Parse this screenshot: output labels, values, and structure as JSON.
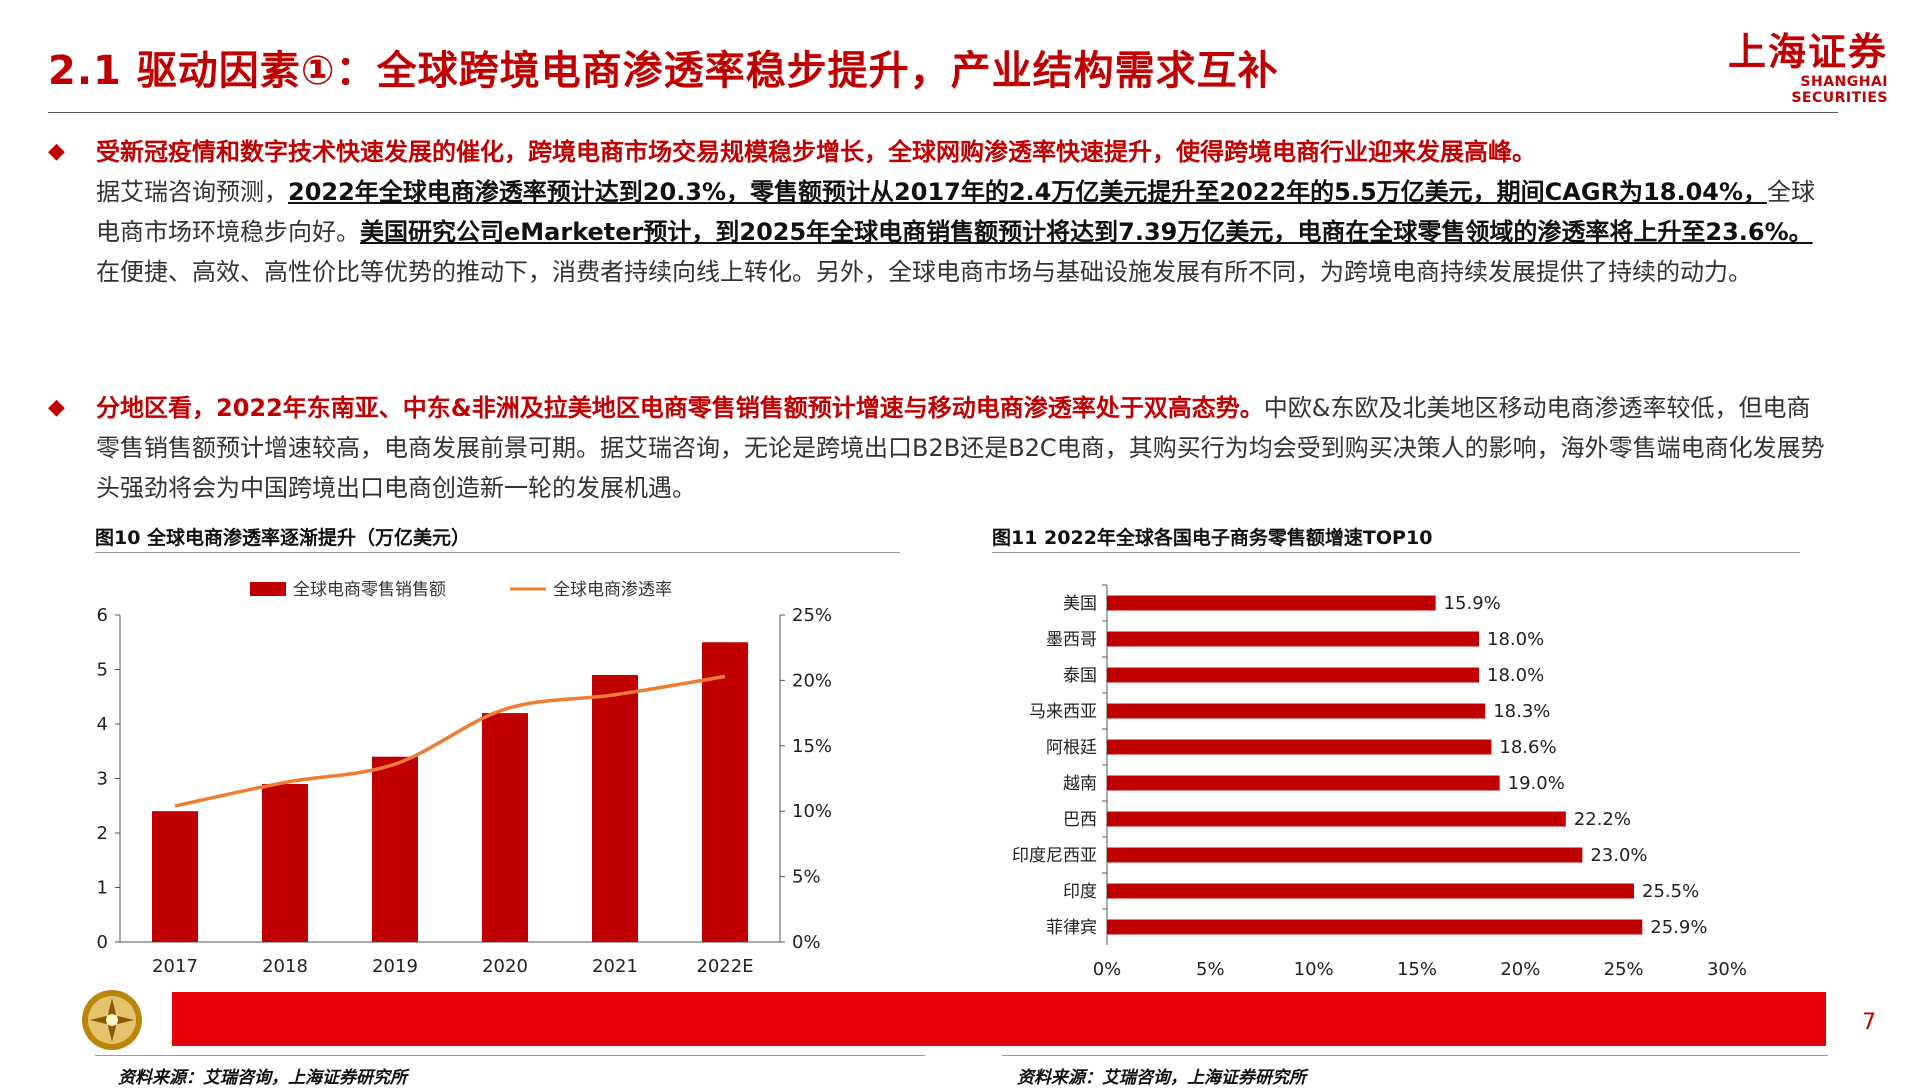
{
  "header": {
    "title": "2.1 驱动因素①：全球跨境电商渗透率稳步提升，产业结构需求互补",
    "logo_cn": "上海证券",
    "logo_en": "SHANGHAI SECURITIES"
  },
  "paragraph1": {
    "headline": "受新冠疫情和数字技术快速发展的催化，跨境电商市场交易规模稳步增长，全球网购渗透率快速提升，使得跨境电商行业迎来发展高峰。",
    "t1": "据艾瑞咨询预测，",
    "u1": "2022年全球电商渗透率预计达到20.3%，零售额预计从2017年的2.4万亿美元提升至2022年的5.5万亿美元，期间CAGR为18.04%，",
    "t2": "全球电商市场环境稳步向好。",
    "u2": "美国研究公司eMarketer预计，到2025年全球电商销售额预计将达到7.39万亿美元，电商在全球零售领域的渗透率将上升至23.6%。",
    "t3": "在便捷、高效、高性价比等优势的推动下，消费者持续向线上转化。另外，全球电商市场与基础设施发展有所不同，为跨境电商持续发展提供了持续的动力。"
  },
  "paragraph2": {
    "headline": "分地区看，2022年东南亚、中东&非洲及拉美地区电商零售销售额预计增速与移动电商渗透率处于双高态势。",
    "body": "中欧&东欧及北美地区移动电商渗透率较低，但电商零售销售额预计增速较高，电商发展前景可期。据艾瑞咨询，无论是跨境出口B2B还是B2C电商，其购买行为均会受到购买决策人的影响，海外零售端电商化发展势头强劲将会为中国跨境出口电商创造新一轮的发展机遇。"
  },
  "figure10": {
    "title": "图10 全球电商渗透率逐渐提升（万亿美元）",
    "source": "资料来源：艾瑞咨询，上海证券研究所"
  },
  "figure11": {
    "title": "图11 2022年全球各国电子商务零售额增速TOP10",
    "source": "资料来源：艾瑞咨询，上海证券研究所"
  },
  "page_number": "7",
  "colors": {
    "accent": "#c00000",
    "bar": "#c00000",
    "line": "#ed7d31",
    "footer": "#e8000b"
  },
  "chart_data": [
    {
      "type": "bar+line",
      "categories": [
        "2017",
        "2018",
        "2019",
        "2020",
        "2021",
        "2022E"
      ],
      "series": [
        {
          "name": "全球电商零售销售额",
          "type": "bar",
          "axis": "left",
          "values": [
            2.4,
            2.9,
            3.4,
            4.2,
            4.9,
            5.5
          ]
        },
        {
          "name": "全球电商渗透率",
          "type": "line",
          "axis": "right",
          "values": [
            10.4,
            12.2,
            13.6,
            17.8,
            18.9,
            20.3
          ]
        }
      ],
      "ylim": [
        0,
        6
      ],
      "yticks": [
        "0",
        "1",
        "2",
        "3",
        "4",
        "5",
        "6"
      ],
      "y2lim": [
        0,
        25
      ],
      "y2ticks": [
        "0%",
        "5%",
        "10%",
        "15%",
        "20%",
        "25%"
      ],
      "legend": "top",
      "grid": false
    },
    {
      "type": "bar",
      "orientation": "horizontal",
      "categories": [
        "美国",
        "墨西哥",
        "泰国",
        "马来西亚",
        "阿根廷",
        "越南",
        "巴西",
        "印度尼西亚",
        "印度",
        "菲律宾"
      ],
      "values": [
        15.9,
        18.0,
        18.0,
        18.3,
        18.6,
        19.0,
        22.2,
        23.0,
        25.5,
        25.9
      ],
      "labels": [
        "15.9%",
        "18.0%",
        "18.0%",
        "18.3%",
        "18.6%",
        "19.0%",
        "22.2%",
        "23.0%",
        "25.5%",
        "25.9%"
      ],
      "xlim": [
        0,
        30
      ],
      "xticks": [
        "0%",
        "5%",
        "10%",
        "15%",
        "20%",
        "25%",
        "30%"
      ],
      "grid": false
    }
  ]
}
